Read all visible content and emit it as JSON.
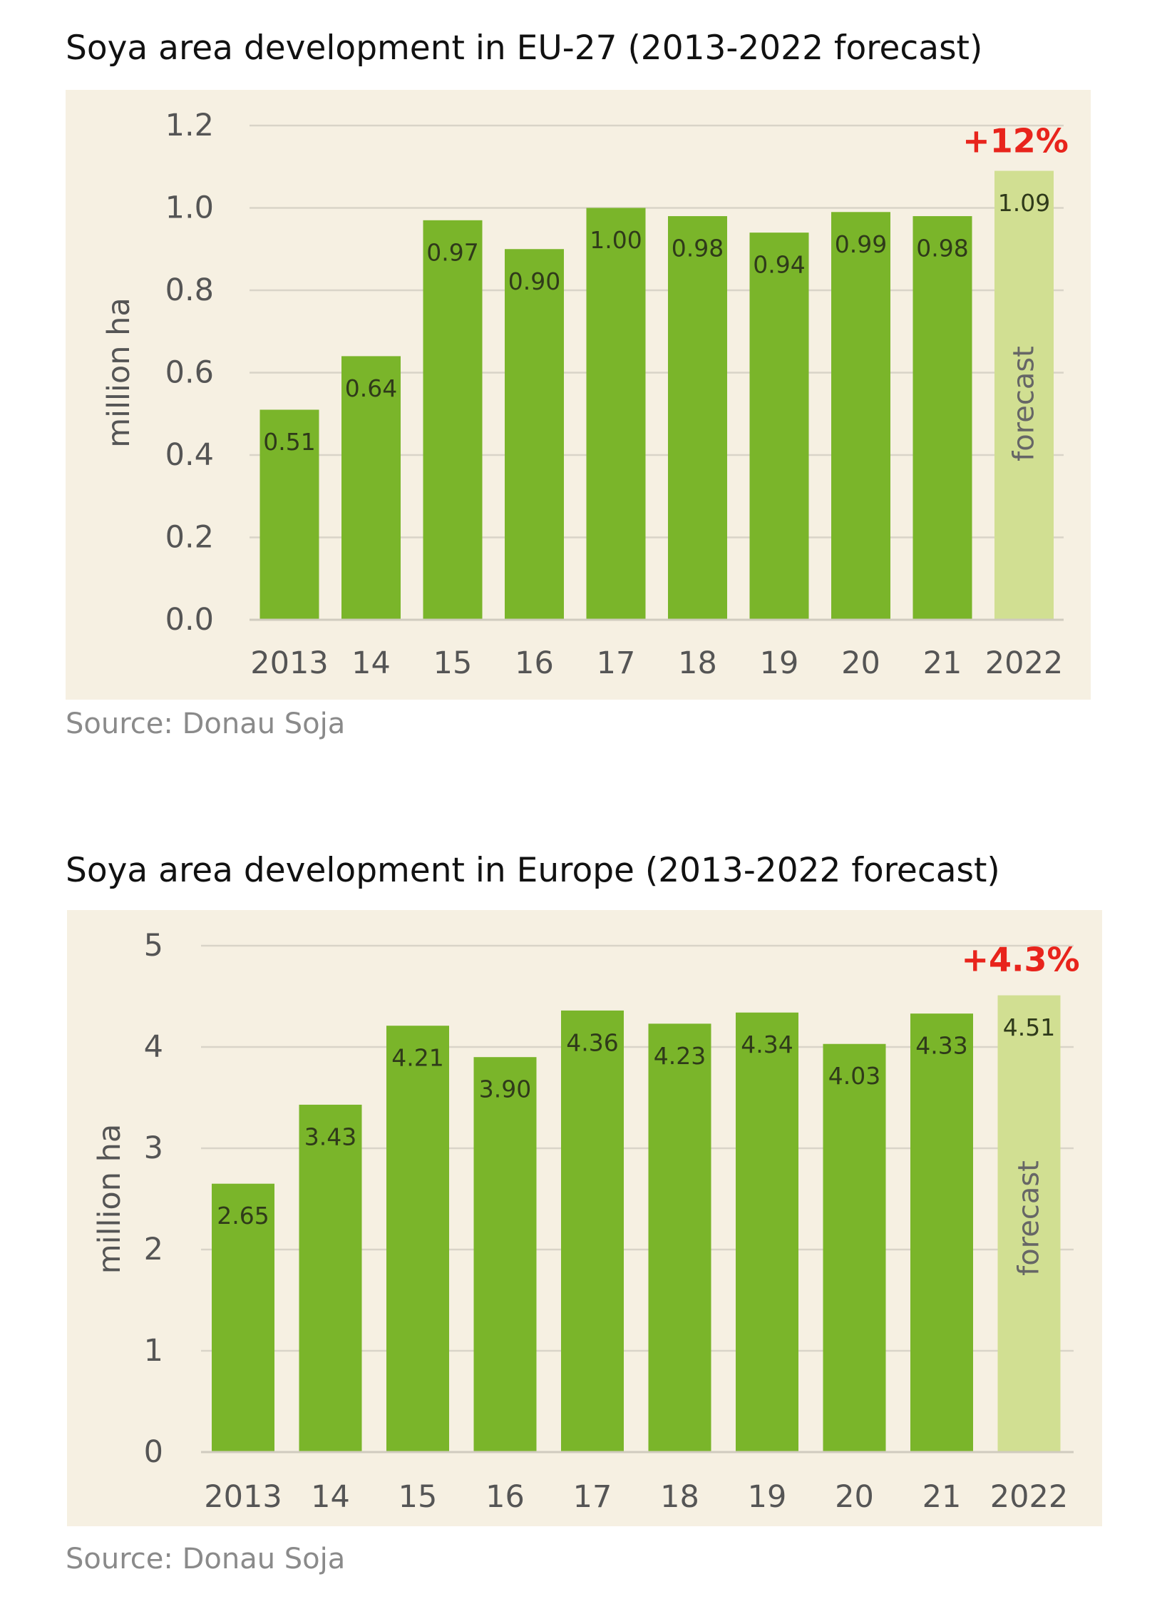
{
  "chart_data": [
    {
      "type": "bar",
      "title": "Soya area development in EU-27 (2013-2022 forecast)",
      "source": "Source: Donau Soja",
      "ylabel": "million ha",
      "categories": [
        "2013",
        "14",
        "15",
        "16",
        "17",
        "18",
        "19",
        "20",
        "21",
        "2022"
      ],
      "values": [
        0.51,
        0.64,
        0.97,
        0.9,
        1.0,
        0.98,
        0.94,
        0.99,
        0.98,
        1.09
      ],
      "value_labels": [
        "0.51",
        "0.64",
        "0.97",
        "0.90",
        "1.00",
        "0.98",
        "0.94",
        "0.99",
        "0.98",
        "1.09"
      ],
      "ylim": [
        0,
        1.2
      ],
      "yticks": [
        "0.0",
        "0.2",
        "0.4",
        "0.6",
        "0.8",
        "1.0",
        "1.2"
      ],
      "forecast_label": "forecast",
      "change_label": "+12%",
      "grid": true,
      "colors": {
        "bar": "#7ab52a",
        "forecast_bar": "#d1df92",
        "background": "#f6f0e2",
        "change": "#e8241c"
      }
    },
    {
      "type": "bar",
      "title": "Soya area development in Europe (2013-2022 forecast)",
      "source": "Source: Donau Soja",
      "ylabel": "million ha",
      "categories": [
        "2013",
        "14",
        "15",
        "16",
        "17",
        "18",
        "19",
        "20",
        "21",
        "2022"
      ],
      "values": [
        2.65,
        3.43,
        4.21,
        3.9,
        4.36,
        4.23,
        4.34,
        4.03,
        4.33,
        4.51
      ],
      "value_labels": [
        "2.65",
        "3.43",
        "4.21",
        "3.90",
        "4.36",
        "4.23",
        "4.34",
        "4.03",
        "4.33",
        "4.51"
      ],
      "ylim": [
        0,
        5
      ],
      "yticks": [
        "0",
        "1",
        "2",
        "3",
        "4",
        "5"
      ],
      "forecast_label": "forecast",
      "change_label": "+4.3%",
      "grid": true,
      "colors": {
        "bar": "#7ab52a",
        "forecast_bar": "#d1df92",
        "background": "#f6f0e2",
        "change": "#e8241c"
      }
    }
  ]
}
